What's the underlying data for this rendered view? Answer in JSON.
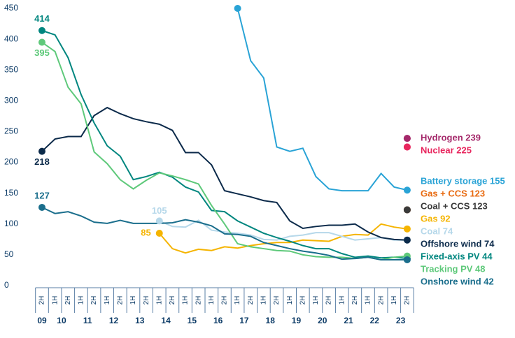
{
  "chart_data": {
    "type": "line",
    "categories": [
      "2H",
      "1H",
      "2H",
      "1H",
      "2H",
      "1H",
      "2H",
      "1H",
      "2H",
      "1H",
      "2H",
      "1H",
      "2H",
      "1H",
      "2H",
      "1H",
      "2H",
      "1H",
      "2H",
      "1H",
      "2H",
      "1H",
      "2H",
      "1H",
      "2H",
      "1H",
      "2H",
      "1H",
      "2H"
    ],
    "years": [
      "09",
      "10",
      "11",
      "12",
      "13",
      "14",
      "15",
      "16",
      "17",
      "18",
      "19",
      "20",
      "21",
      "22",
      "23"
    ],
    "ylim": [
      0,
      450
    ],
    "yticks": [
      0,
      50,
      100,
      150,
      200,
      250,
      300,
      350,
      400,
      450
    ],
    "grid": false,
    "series": [
      {
        "label": "Hydrogen 239",
        "color": "#a4286a",
        "values": [
          null,
          null,
          null,
          null,
          null,
          null,
          null,
          null,
          null,
          null,
          null,
          null,
          null,
          null,
          null,
          null,
          null,
          null,
          null,
          null,
          null,
          null,
          null,
          null,
          null,
          null,
          null,
          null,
          239
        ]
      },
      {
        "label": "Nuclear 225",
        "color": "#e8265e",
        "values": [
          null,
          null,
          null,
          null,
          null,
          null,
          null,
          null,
          null,
          null,
          null,
          null,
          null,
          null,
          null,
          null,
          null,
          null,
          null,
          null,
          null,
          null,
          null,
          null,
          null,
          null,
          null,
          null,
          225
        ]
      },
      {
        "label": "Battery storage 155",
        "color": "#29a3d6",
        "values": [
          null,
          null,
          null,
          null,
          null,
          null,
          null,
          null,
          null,
          null,
          null,
          null,
          null,
          null,
          null,
          450,
          365,
          337,
          225,
          218,
          223,
          177,
          157,
          154,
          154,
          154,
          182,
          160,
          155
        ]
      },
      {
        "label": "Gas + CCS 123",
        "color": "#e86a10",
        "values": [
          null,
          null,
          null,
          null,
          null,
          null,
          null,
          null,
          null,
          null,
          null,
          null,
          null,
          null,
          null,
          null,
          null,
          null,
          null,
          null,
          null,
          null,
          null,
          null,
          null,
          null,
          null,
          null,
          123
        ]
      },
      {
        "label": "Coal + CCS 123",
        "color": "#3a3a3a",
        "values": [
          null,
          null,
          null,
          null,
          null,
          null,
          null,
          null,
          null,
          null,
          null,
          null,
          null,
          null,
          null,
          null,
          null,
          null,
          null,
          null,
          null,
          null,
          null,
          null,
          null,
          null,
          null,
          null,
          123
        ]
      },
      {
        "label": "Gas 92",
        "color": "#f5b400",
        "start_label": "85",
        "values": [
          null,
          null,
          null,
          null,
          null,
          null,
          null,
          null,
          null,
          85,
          60,
          53,
          59,
          57,
          63,
          61,
          65,
          68,
          70,
          70,
          74,
          73,
          72,
          80,
          83,
          82,
          100,
          95,
          92
        ]
      },
      {
        "label": "Coal 74",
        "color": "#b6d8ea",
        "start_label": "105",
        "values": [
          null,
          null,
          null,
          null,
          null,
          null,
          null,
          null,
          null,
          105,
          96,
          95,
          106,
          90,
          87,
          85,
          82,
          75,
          74,
          80,
          82,
          86,
          86,
          80,
          74,
          76,
          78,
          74,
          74
        ]
      },
      {
        "label": "Offshore wind 74",
        "color": "#0b2a4a",
        "start_label": "218",
        "values": [
          218,
          238,
          242,
          242,
          276,
          289,
          279,
          271,
          266,
          262,
          252,
          216,
          216,
          196,
          154,
          149,
          144,
          138,
          135,
          105,
          93,
          96,
          98,
          98,
          100,
          87,
          78,
          75,
          74
        ]
      },
      {
        "label": "Fixed-axis PV 44",
        "color": "#00867f",
        "start_label": "414",
        "values": [
          414,
          407,
          370,
          310,
          264,
          227,
          210,
          172,
          177,
          184,
          176,
          160,
          152,
          122,
          120,
          105,
          95,
          85,
          78,
          72,
          65,
          60,
          60,
          52,
          46,
          48,
          45,
          46,
          44
        ]
      },
      {
        "label": "Tracking PV 48",
        "color": "#5ec97a",
        "start_label": "395",
        "values": [
          395,
          380,
          322,
          295,
          217,
          198,
          172,
          157,
          171,
          183,
          178,
          172,
          165,
          130,
          100,
          68,
          63,
          60,
          57,
          56,
          50,
          47,
          46,
          46,
          44,
          46,
          42,
          46,
          48
        ]
      },
      {
        "label": "Onshore wind 42",
        "color": "#1a6e8c",
        "start_label": "127",
        "values": [
          127,
          117,
          120,
          113,
          103,
          101,
          106,
          101,
          101,
          101,
          102,
          107,
          103,
          97,
          84,
          83,
          80,
          70,
          65,
          60,
          56,
          53,
          49,
          43,
          44,
          46,
          42,
          42,
          42
        ]
      }
    ]
  }
}
